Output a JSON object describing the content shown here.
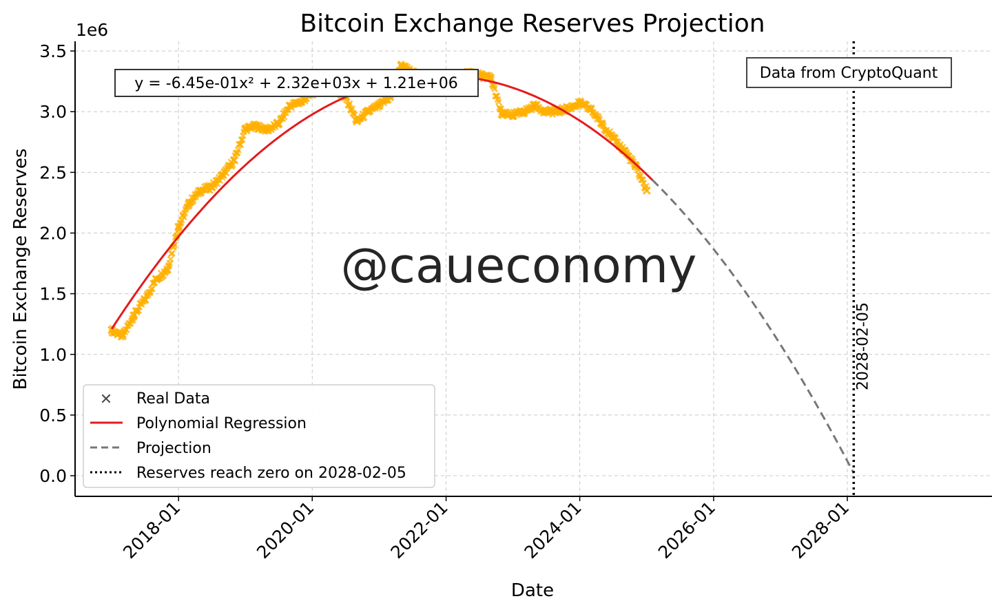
{
  "chart_data": {
    "type": "line",
    "title": "Bitcoin Exchange Reserves Projection",
    "xlabel": "Date",
    "ylabel": "Bitcoin Exchange Reserves",
    "y_multiplier_label": "1e6",
    "x_ticks": [
      "2018-01",
      "2020-01",
      "2022-01",
      "2024-01",
      "2026-01",
      "2028-01"
    ],
    "y_ticks": [
      "0.0",
      "0.5",
      "1.0",
      "1.5",
      "2.0",
      "2.5",
      "3.0",
      "3.5"
    ],
    "xlim": [
      "2016-06-15",
      "2030-03-01"
    ],
    "ylim": [
      -0.17,
      3.58
    ],
    "grid": true,
    "equation_annotation": "y = -6.45e-01x² + 2.32e+03x + 1.21e+06",
    "source_annotation": "Data from CryptoQuant",
    "watermark": "@caueconomy",
    "zero_date_label": "2028-02-05",
    "zero_date": "2028-02-05",
    "regression": {
      "a": -0.645,
      "b": 2320,
      "c": 1210000,
      "start": "2017-01-01",
      "end": "2025-02-01",
      "projection_end": "2028-02-05"
    },
    "legend": {
      "placement": "lower-left",
      "entries": [
        {
          "label": "Real Data",
          "color": "#FFB000",
          "marker": "x"
        },
        {
          "label": "Polynomial Regression",
          "color": "#E41A1C",
          "style": "solid"
        },
        {
          "label": "Projection",
          "color": "#777777",
          "style": "dashed"
        },
        {
          "label": "Reserves reach zero on 2028-02-05",
          "color": "#000000",
          "style": "dotted"
        }
      ]
    },
    "series": [
      {
        "name": "Real Data",
        "color": "#FFB000",
        "x": [
          "2017-01-01",
          "2017-03-01",
          "2017-05-01",
          "2017-07-01",
          "2017-09-01",
          "2017-11-01",
          "2018-01-01",
          "2018-03-01",
          "2018-05-01",
          "2018-07-01",
          "2018-09-01",
          "2018-11-01",
          "2019-01-01",
          "2019-03-01",
          "2019-05-01",
          "2019-07-01",
          "2019-09-01",
          "2019-11-01",
          "2020-01-01",
          "2020-03-01",
          "2020-05-01",
          "2020-07-01",
          "2020-09-01",
          "2020-11-01",
          "2021-01-01",
          "2021-03-01",
          "2021-05-01",
          "2021-07-01",
          "2021-09-01",
          "2021-11-01",
          "2022-01-01",
          "2022-03-01",
          "2022-05-01",
          "2022-07-01",
          "2022-09-01",
          "2022-11-01",
          "2023-01-01",
          "2023-03-01",
          "2023-05-01",
          "2023-07-01",
          "2023-09-01",
          "2023-11-01",
          "2024-01-01",
          "2024-03-01",
          "2024-05-01",
          "2024-07-01",
          "2024-09-01",
          "2024-11-01",
          "2025-01-01"
        ],
        "y": [
          1.2,
          1.15,
          1.32,
          1.45,
          1.62,
          1.7,
          2.05,
          2.25,
          2.35,
          2.38,
          2.48,
          2.6,
          2.86,
          2.88,
          2.85,
          2.9,
          3.05,
          3.08,
          3.15,
          3.22,
          3.18,
          3.12,
          2.92,
          3.0,
          3.05,
          3.12,
          3.38,
          3.32,
          3.28,
          3.24,
          3.25,
          3.2,
          3.33,
          3.3,
          3.28,
          2.98,
          2.97,
          3.0,
          3.05,
          3.0,
          3.0,
          3.03,
          3.07,
          3.02,
          2.9,
          2.78,
          2.68,
          2.55,
          2.35
        ]
      }
    ]
  }
}
